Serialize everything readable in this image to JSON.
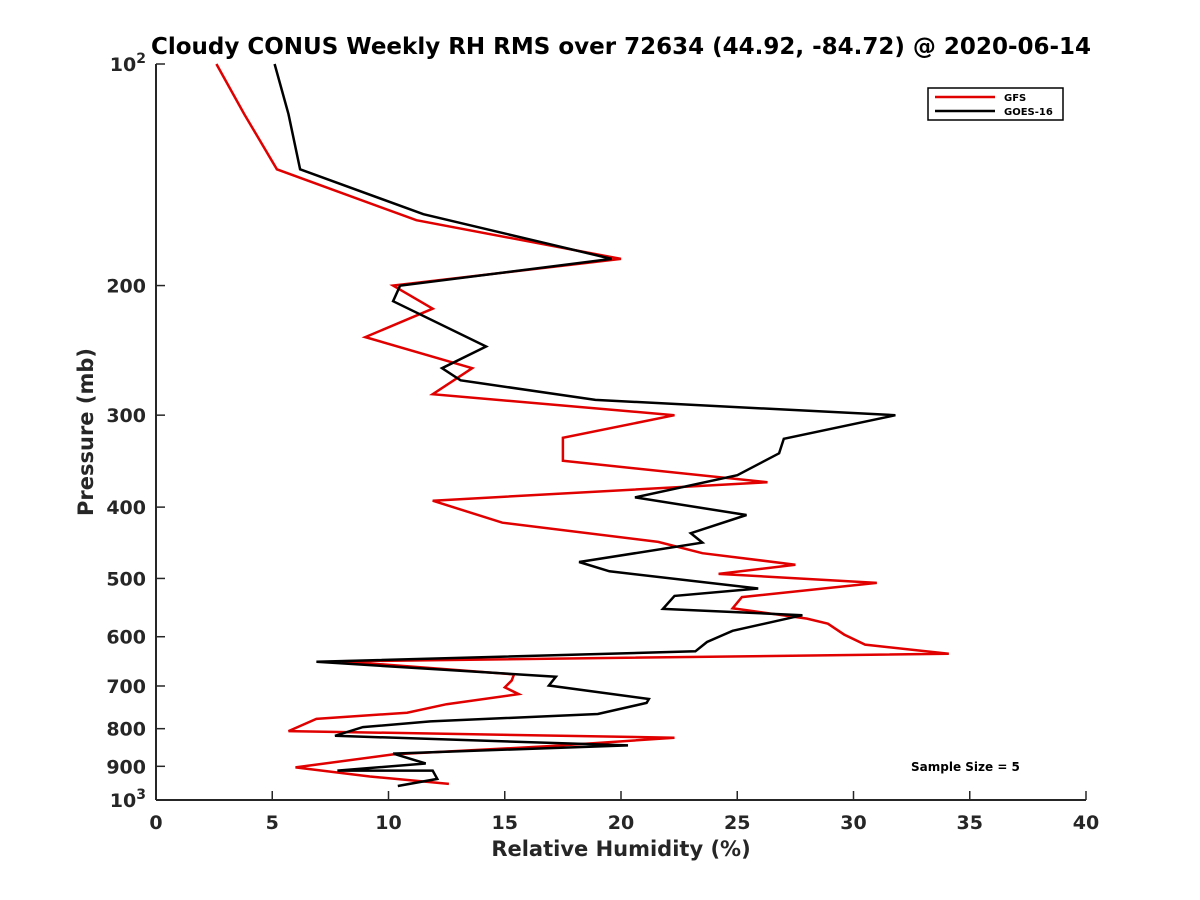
{
  "chart_data": {
    "type": "line",
    "title": "Cloudy CONUS Weekly RH RMS over 72634 (44.92, -84.72) @ 2020-06-14",
    "xlabel": "Relative Humidity (%)",
    "ylabel": "Pressure (mb)",
    "xlim": [
      0,
      40
    ],
    "ylim": [
      100,
      1000
    ],
    "y_scale": "log",
    "y_reversed": true,
    "grid": false,
    "legend_position": "top-right",
    "x_ticks": [
      "0",
      "5",
      "10",
      "15",
      "20",
      "25",
      "30",
      "35",
      "40"
    ],
    "x_tick_values": [
      0,
      5,
      10,
      15,
      20,
      25,
      30,
      35,
      40
    ],
    "y_tick_values": [
      100,
      200,
      300,
      400,
      500,
      600,
      700,
      800,
      900,
      1000
    ],
    "y_ticks": [
      "10^2",
      "200",
      "300",
      "400",
      "500",
      "600",
      "700",
      "800",
      "900",
      "10^3"
    ],
    "annotation": "Sample Size = 5",
    "series": [
      {
        "name": "GFS",
        "color": "#e00000",
        "points": [
          [
            2.6,
            100
          ],
          [
            3.8,
            117
          ],
          [
            5.2,
            139
          ],
          [
            11.2,
            163
          ],
          [
            20.0,
            184
          ],
          [
            10.2,
            200
          ],
          [
            11.9,
            215
          ],
          [
            9.0,
            235
          ],
          [
            13.6,
            259
          ],
          [
            11.9,
            281
          ],
          [
            22.3,
            300
          ],
          [
            17.5,
            322
          ],
          [
            17.5,
            346
          ],
          [
            26.3,
            370
          ],
          [
            11.9,
            392
          ],
          [
            14.9,
            420
          ],
          [
            21.6,
            446
          ],
          [
            23.5,
            462
          ],
          [
            27.5,
            479
          ],
          [
            24.2,
            493
          ],
          [
            31.0,
            507
          ],
          [
            25.2,
            530
          ],
          [
            24.8,
            549
          ],
          [
            28.0,
            567
          ],
          [
            28.9,
            576
          ],
          [
            29.6,
            596
          ],
          [
            30.5,
            615
          ],
          [
            34.1,
            633
          ],
          [
            8.0,
            648
          ],
          [
            15.4,
            675
          ],
          [
            15.3,
            688
          ],
          [
            15.0,
            703
          ],
          [
            15.6,
            718
          ],
          [
            12.5,
            741
          ],
          [
            10.8,
            761
          ],
          [
            6.9,
            776
          ],
          [
            5.7,
            806
          ],
          [
            22.3,
            823
          ],
          [
            17.2,
            844
          ],
          [
            10.2,
            867
          ],
          [
            6.0,
            903
          ],
          [
            9.2,
            929
          ],
          [
            12.6,
            951
          ]
        ]
      },
      {
        "name": "GOES-16",
        "color": "#000000",
        "points": [
          [
            5.1,
            100
          ],
          [
            5.7,
            117
          ],
          [
            6.2,
            139
          ],
          [
            11.5,
            160
          ],
          [
            19.6,
            184
          ],
          [
            10.5,
            200
          ],
          [
            10.2,
            210
          ],
          [
            14.2,
            242
          ],
          [
            12.3,
            259
          ],
          [
            13.1,
            269
          ],
          [
            18.9,
            286
          ],
          [
            31.8,
            300
          ],
          [
            27.0,
            323
          ],
          [
            26.8,
            338
          ],
          [
            25.0,
            362
          ],
          [
            20.6,
            388
          ],
          [
            25.4,
            410
          ],
          [
            23.0,
            434
          ],
          [
            23.5,
            447
          ],
          [
            18.2,
            475
          ],
          [
            19.5,
            489
          ],
          [
            25.9,
            516
          ],
          [
            22.3,
            528
          ],
          [
            21.8,
            550
          ],
          [
            27.8,
            561
          ],
          [
            24.8,
            589
          ],
          [
            23.7,
            610
          ],
          [
            23.2,
            628
          ],
          [
            6.9,
            649
          ],
          [
            17.2,
            680
          ],
          [
            16.9,
            699
          ],
          [
            21.2,
            729
          ],
          [
            21.1,
            738
          ],
          [
            19.0,
            764
          ],
          [
            11.8,
            782
          ],
          [
            8.9,
            796
          ],
          [
            7.7,
            818
          ],
          [
            20.3,
            843
          ],
          [
            10.2,
            865
          ],
          [
            11.6,
            892
          ],
          [
            7.8,
            912
          ],
          [
            11.9,
            912
          ],
          [
            12.1,
            936
          ],
          [
            10.4,
            957
          ]
        ]
      }
    ]
  }
}
